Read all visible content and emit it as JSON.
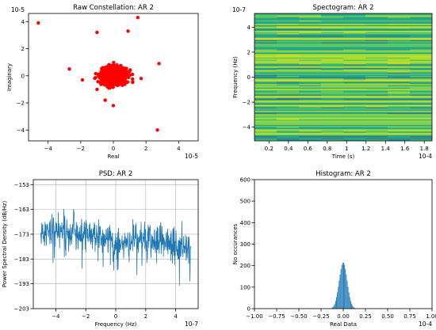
{
  "figure": {
    "background": "#ffffff",
    "axis_color": "#000000"
  },
  "chart_data": [
    {
      "id": "constellation",
      "type": "scatter",
      "title": "Raw Constellation: AR 2",
      "xlabel": "Real",
      "ylabel": "Imaginary",
      "x_offset_label": "10-5",
      "y_offset_label": "10-5",
      "xlim": [
        -5.2,
        5.2
      ],
      "ylim": [
        -4.8,
        4.6
      ],
      "xticks": [
        -4,
        -2,
        0,
        2,
        4
      ],
      "yticks": [
        -4,
        -2,
        0,
        2,
        4
      ],
      "color": "#ff0000",
      "cluster": {
        "center": [
          0,
          0
        ],
        "std": [
          0.38,
          0.32
        ],
        "count": 900
      },
      "outliers": [
        [
          -4.6,
          3.9
        ],
        [
          1.5,
          4.3
        ],
        [
          -1.0,
          3.2
        ],
        [
          0.9,
          3.3
        ],
        [
          -2.7,
          0.5
        ],
        [
          2.8,
          0.9
        ],
        [
          2.7,
          -4.0
        ],
        [
          -1.0,
          -1.0
        ],
        [
          0.0,
          -2.2
        ],
        [
          -1.9,
          -0.3
        ],
        [
          1.7,
          -0.2
        ],
        [
          -0.5,
          -1.8
        ]
      ],
      "grid": false
    },
    {
      "id": "spectrogram",
      "type": "heatmap",
      "title": "Spectogram: AR 2",
      "xlabel": "Time (s)",
      "ylabel": "Frequency (Hz)",
      "x_offset_label": "10-4",
      "y_offset_label": "10-7",
      "xlim": [
        0.05,
        1.88
      ],
      "ylim": [
        -5.1,
        5.1
      ],
      "xticks": [
        0.2,
        0.4,
        0.6,
        0.8,
        1.0,
        1.2,
        1.4,
        1.6,
        1.8
      ],
      "yticks": [
        -4,
        -2,
        0,
        2,
        4
      ],
      "colormap": [
        "#2d7f8e",
        "#27a589",
        "#5cc863",
        "#aadc32",
        "#c8e020"
      ],
      "rows": 110,
      "grid": false
    },
    {
      "id": "psd",
      "type": "line",
      "title": "PSD: AR 2",
      "xlabel": "Frequency (Hz)",
      "ylabel": "Power Spectral Density (dB/Hz)",
      "x_offset_label": "10-7",
      "xlim": [
        -5.5,
        5.5
      ],
      "ylim": [
        -203,
        -151
      ],
      "xticks": [
        -4,
        -2,
        0,
        2,
        4
      ],
      "yticks": [
        -203,
        -193,
        -183,
        -173,
        -163,
        -153
      ],
      "color": "#1f77b4",
      "grid": true,
      "profile": [
        {
          "x": -5.0,
          "mean": -172
        },
        {
          "x": -2.5,
          "mean": -172
        },
        {
          "x": -1.0,
          "mean": -174
        },
        {
          "x": 0.0,
          "mean": -177
        },
        {
          "x": 1.5,
          "mean": -175
        },
        {
          "x": 3.0,
          "mean": -176
        },
        {
          "x": 5.0,
          "mean": -178
        }
      ],
      "points": 600
    },
    {
      "id": "histogram",
      "type": "bar",
      "title": "Histogram: AR 2",
      "xlabel": "Real Data",
      "ylabel": "No occurances",
      "x_offset_label": "10-4",
      "xlim": [
        -1.0,
        1.0
      ],
      "ylim": [
        0,
        600
      ],
      "xticks": [
        -1.0,
        -0.75,
        -0.5,
        -0.25,
        0.0,
        0.25,
        0.5,
        0.75,
        1.0
      ],
      "xtick_labels": [
        "−1.00",
        "−0.75",
        "−0.50",
        "−0.25",
        "0.00",
        "0.25",
        "0.50",
        "0.75",
        "1.00"
      ],
      "yticks": [
        0,
        100,
        200,
        300,
        400,
        500,
        600
      ],
      "color": "#1f77b4",
      "bins": {
        "start": -0.13,
        "width": 0.01,
        "count": 27
      },
      "peak": 215,
      "std": 0.045,
      "grid": false
    }
  ]
}
